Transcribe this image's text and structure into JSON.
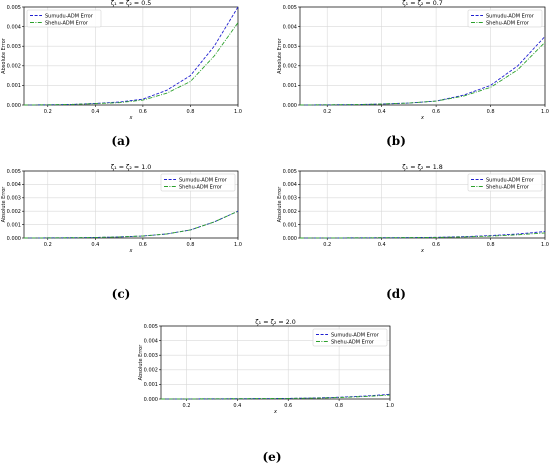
{
  "chart_data": [
    {
      "type": "line",
      "caption": "(a)",
      "title": "ζ₁ = ζ₂ = 0.5",
      "xlabel": "x",
      "ylabel": "Absolute Error",
      "xlim": [
        0.1,
        1.0
      ],
      "ylim": [
        0,
        0.005
      ],
      "xticks": [
        "0.2",
        "0.4",
        "0.6",
        "0.8",
        "1.0"
      ],
      "yticks": [
        "0.000",
        "0.001",
        "0.002",
        "0.003",
        "0.004",
        "0.005"
      ],
      "legend_position": "top-left",
      "grid": true,
      "x": [
        0.1,
        0.2,
        0.3,
        0.4,
        0.5,
        0.6,
        0.7,
        0.8,
        0.9,
        1.0
      ],
      "series": [
        {
          "name": "Sumudu-ADM Error",
          "color": "#1f1fd0",
          "dash": "dashed",
          "values": [
            0,
            1e-05,
            3e-05,
            8e-05,
            0.00015,
            0.0003,
            0.00075,
            0.0015,
            0.003,
            0.005
          ]
        },
        {
          "name": "Shehu-ADM Error",
          "color": "#2ca02c",
          "dash": "dashdot",
          "values": [
            0,
            1e-05,
            3e-05,
            7e-05,
            0.00012,
            0.00025,
            0.0006,
            0.0012,
            0.0025,
            0.0042
          ]
        }
      ]
    },
    {
      "type": "line",
      "caption": "(b)",
      "title": "ζ₁ = ζ₂ = 0.7",
      "xlabel": "x",
      "ylabel": "Absolute Error",
      "xlim": [
        0.1,
        1.0
      ],
      "ylim": [
        0,
        0.005
      ],
      "xticks": [
        "0.2",
        "0.4",
        "0.6",
        "0.8",
        "1.0"
      ],
      "yticks": [
        "0.000",
        "0.001",
        "0.002",
        "0.003",
        "0.004",
        "0.005"
      ],
      "legend_position": "top-right",
      "grid": true,
      "x": [
        0.1,
        0.2,
        0.3,
        0.4,
        0.5,
        0.6,
        0.7,
        0.8,
        0.9,
        1.0
      ],
      "series": [
        {
          "name": "Sumudu-ADM Error",
          "color": "#1f1fd0",
          "dash": "dashed",
          "values": [
            0,
            1e-05,
            2e-05,
            5e-05,
            0.0001,
            0.0002,
            0.0005,
            0.001,
            0.002,
            0.0035
          ]
        },
        {
          "name": "Shehu-ADM Error",
          "color": "#2ca02c",
          "dash": "dashdot",
          "values": [
            0,
            1e-05,
            2e-05,
            5e-05,
            0.0001,
            0.0002,
            0.00045,
            0.0009,
            0.0018,
            0.0032
          ]
        }
      ]
    },
    {
      "type": "line",
      "caption": "(c)",
      "title": "ζ₁ = ζ₂ = 1.0",
      "xlabel": "x",
      "ylabel": "Absolute Error",
      "xlim": [
        0.1,
        1.0
      ],
      "ylim": [
        0,
        0.005
      ],
      "xticks": [
        "0.2",
        "0.4",
        "0.6",
        "0.8",
        "1.0"
      ],
      "yticks": [
        "0.000",
        "0.001",
        "0.002",
        "0.003",
        "0.004",
        "0.005"
      ],
      "legend_position": "top-right",
      "grid": true,
      "x": [
        0.1,
        0.2,
        0.3,
        0.4,
        0.5,
        0.6,
        0.7,
        0.8,
        0.9,
        1.0
      ],
      "series": [
        {
          "name": "Sumudu-ADM Error",
          "color": "#1f1fd0",
          "dash": "dashed",
          "values": [
            0,
            1e-05,
            2e-05,
            4e-05,
            8e-05,
            0.00015,
            0.0003,
            0.0006,
            0.0012,
            0.002
          ]
        },
        {
          "name": "Shehu-ADM Error",
          "color": "#2ca02c",
          "dash": "dashdot",
          "values": [
            0,
            1e-05,
            2e-05,
            4e-05,
            8e-05,
            0.00015,
            0.0003,
            0.0006,
            0.0012,
            0.002
          ]
        }
      ]
    },
    {
      "type": "line",
      "caption": "(d)",
      "title": "ζ₁ = ζ₂ = 1.8",
      "xlabel": "x",
      "ylabel": "Absolute Error",
      "xlim": [
        0.1,
        1.0
      ],
      "ylim": [
        0,
        0.005
      ],
      "xticks": [
        "0.2",
        "0.4",
        "0.6",
        "0.8",
        "1.0"
      ],
      "yticks": [
        "0.000",
        "0.001",
        "0.002",
        "0.003",
        "0.004",
        "0.005"
      ],
      "legend_position": "top-right",
      "grid": true,
      "x": [
        0.1,
        0.2,
        0.3,
        0.4,
        0.5,
        0.6,
        0.7,
        0.8,
        0.9,
        1.0
      ],
      "series": [
        {
          "name": "Sumudu-ADM Error",
          "color": "#1f1fd0",
          "dash": "dashed",
          "values": [
            0,
            5e-06,
            1e-05,
            2e-05,
            3e-05,
            5e-05,
            0.0001,
            0.00018,
            0.0003,
            0.00048
          ]
        },
        {
          "name": "Shehu-ADM Error",
          "color": "#2ca02c",
          "dash": "dashdot",
          "values": [
            0,
            5e-06,
            1e-05,
            2e-05,
            3e-05,
            4e-05,
            8e-05,
            0.00014,
            0.00024,
            0.00038
          ]
        }
      ]
    },
    {
      "type": "line",
      "caption": "(e)",
      "title": "ζ₁ = ζ₂ = 2.0",
      "xlabel": "x",
      "ylabel": "Absolute Error",
      "xlim": [
        0.1,
        1.0
      ],
      "ylim": [
        0,
        0.005
      ],
      "xticks": [
        "0.2",
        "0.4",
        "0.6",
        "0.8",
        "1.0"
      ],
      "yticks": [
        "0.000",
        "0.001",
        "0.002",
        "0.003",
        "0.004",
        "0.005"
      ],
      "legend_position": "top-right",
      "grid": true,
      "x": [
        0.1,
        0.2,
        0.3,
        0.4,
        0.5,
        0.6,
        0.7,
        0.8,
        0.9,
        1.0
      ],
      "series": [
        {
          "name": "Sumudu-ADM Error",
          "color": "#1f1fd0",
          "dash": "dashed",
          "values": [
            0,
            5e-06,
            1e-05,
            2e-05,
            3e-05,
            4e-05,
            7e-05,
            0.00012,
            0.0002,
            0.00032
          ]
        },
        {
          "name": "Shehu-ADM Error",
          "color": "#2ca02c",
          "dash": "dashdot",
          "values": [
            0,
            5e-06,
            1e-05,
            2e-05,
            3e-05,
            4e-05,
            6e-05,
            0.0001,
            0.00017,
            0.00027
          ]
        }
      ]
    }
  ]
}
